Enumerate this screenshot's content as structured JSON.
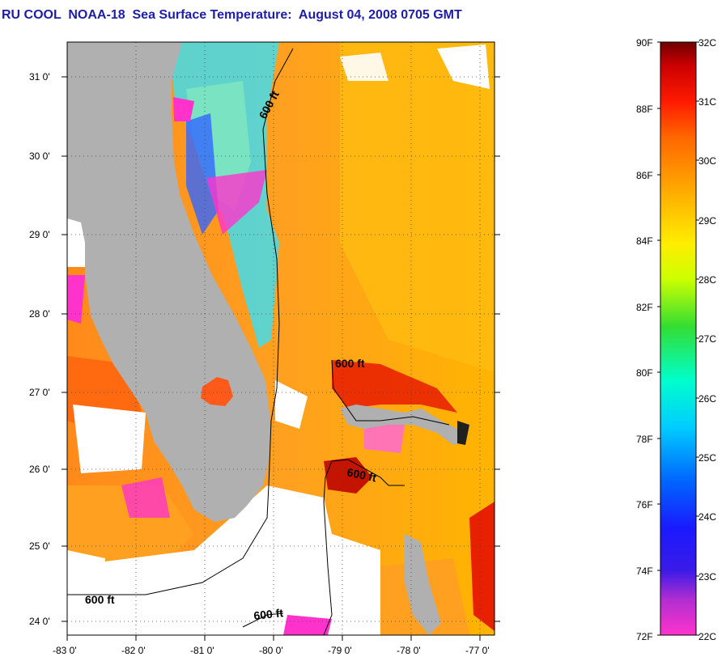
{
  "title": "RU COOL  NOAA-18  Sea Surface Temperature:  August 04, 2008 0705 GMT",
  "map": {
    "lon_range": [
      -83,
      -76.8
    ],
    "lat_range": [
      23.85,
      31.45
    ],
    "lat_ticks": [
      "31 0'",
      "30 0'",
      "29 0'",
      "28 0'",
      "27 0'",
      "26 0'",
      "25 0'",
      "24 0'"
    ],
    "lon_ticks": [
      "-83 0'",
      "-82 0'",
      "-81 0'",
      "-80 0'",
      "-79 0'",
      "-78 0'",
      "-77 0'"
    ],
    "isobath_labels": [
      "600 ft",
      "600 ft",
      "600 ft",
      "600 ft",
      "600 ft"
    ],
    "land_color": "#b0b0b0",
    "cloud_color": "#ffffff"
  },
  "colorbar": {
    "fahrenheit_labels": [
      "90F",
      "88F",
      "86F",
      "84F",
      "82F",
      "80F",
      "78F",
      "76F",
      "74F",
      "72F"
    ],
    "celsius_labels": [
      "32C",
      "31C",
      "30C",
      "29C",
      "28C",
      "27C",
      "26C",
      "25C",
      "24C",
      "23C",
      "22C"
    ],
    "stops": [
      "#ff33cc",
      "#8a2be2",
      "#1a1aff",
      "#0066ff",
      "#00ccff",
      "#00ffcc",
      "#33dd33",
      "#ccff00",
      "#ffee00",
      "#ffaa00",
      "#ff6600",
      "#ff1a00",
      "#cc0000",
      "#6e0000"
    ]
  }
}
